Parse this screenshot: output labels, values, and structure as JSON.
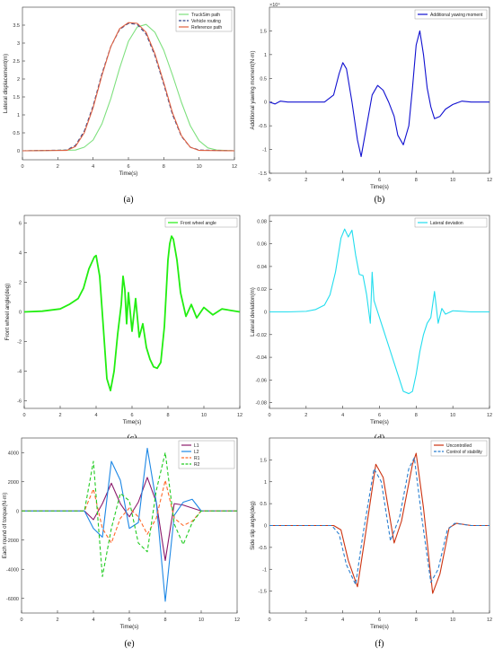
{
  "chart_data": [
    {
      "id": "a",
      "caption": "(a)",
      "type": "line",
      "xlabel": "Time(s)",
      "ylabel": "Lateral displacement(m)",
      "xlim": [
        0,
        12
      ],
      "ylim": [
        -0.25,
        4
      ],
      "xticks": [
        0,
        2,
        4,
        6,
        8,
        10,
        12
      ],
      "yticks": [
        0,
        0.5,
        1,
        1.5,
        2,
        2.5,
        3,
        3.5
      ],
      "legend_position": "top-right",
      "series": [
        {
          "name": "TruckSim path",
          "color": "#7de07d",
          "style": "solid",
          "x": [
            0,
            3,
            3.5,
            4,
            4.5,
            5,
            5.5,
            6,
            6.5,
            7,
            7.5,
            8,
            8.5,
            9,
            9.5,
            10,
            10.5,
            11,
            12
          ],
          "y": [
            0,
            0.02,
            0.1,
            0.3,
            0.75,
            1.45,
            2.3,
            3.05,
            3.45,
            3.52,
            3.3,
            2.8,
            2.1,
            1.35,
            0.7,
            0.28,
            0.08,
            0.02,
            0
          ]
        },
        {
          "name": "Vehicle routing",
          "color": "#33448a",
          "style": "dashed",
          "x": [
            0,
            2.5,
            3,
            3.5,
            4,
            4.5,
            5,
            5.5,
            6,
            6.5,
            7,
            7.5,
            8,
            8.5,
            9,
            9.5,
            10,
            12
          ],
          "y": [
            0,
            0.02,
            0.15,
            0.55,
            1.25,
            2.15,
            2.9,
            3.38,
            3.55,
            3.52,
            3.25,
            2.65,
            1.85,
            1.0,
            0.4,
            0.1,
            0.02,
            0
          ]
        },
        {
          "name": "Reference path",
          "color": "#e06040",
          "style": "solid",
          "x": [
            0,
            2.5,
            3,
            3.5,
            4,
            4.5,
            5,
            5.5,
            6,
            6.5,
            7,
            7.5,
            8,
            8.5,
            9,
            9.5,
            10,
            12
          ],
          "y": [
            0,
            0.01,
            0.12,
            0.5,
            1.2,
            2.1,
            2.9,
            3.4,
            3.57,
            3.55,
            3.3,
            2.7,
            1.9,
            1.05,
            0.42,
            0.1,
            0.01,
            0
          ]
        }
      ]
    },
    {
      "id": "b",
      "caption": "(b)",
      "type": "line",
      "xlabel": "Time(s)",
      "ylabel": "Additional yawing moment(N·m)",
      "exponent_label": "×10⁴",
      "xlim": [
        0,
        12
      ],
      "ylim": [
        -1.5,
        2.0
      ],
      "xticks": [
        0,
        2,
        4,
        6,
        8,
        10,
        12
      ],
      "yticks": [
        -1.5,
        -1,
        -0.5,
        0,
        0.5,
        1,
        1.5
      ],
      "legend_position": "top-right",
      "series": [
        {
          "name": "Additional yawing moment",
          "color": "#1010d0",
          "style": "solid",
          "x": [
            0,
            0.3,
            0.6,
            1,
            2,
            3,
            3.5,
            3.8,
            4.0,
            4.2,
            4.5,
            4.8,
            5.0,
            5.3,
            5.6,
            5.9,
            6.2,
            6.5,
            6.8,
            7.0,
            7.3,
            7.6,
            7.8,
            8.0,
            8.2,
            8.4,
            8.6,
            8.8,
            9.0,
            9.3,
            9.6,
            10,
            10.5,
            11,
            12
          ],
          "y": [
            0,
            -0.04,
            0.02,
            0,
            0,
            0,
            0.15,
            0.6,
            0.83,
            0.7,
            0.0,
            -0.8,
            -1.15,
            -0.5,
            0.15,
            0.35,
            0.25,
            0.0,
            -0.3,
            -0.7,
            -0.9,
            -0.5,
            0.3,
            1.2,
            1.5,
            1.0,
            0.3,
            -0.1,
            -0.35,
            -0.3,
            -0.15,
            -0.05,
            0.02,
            0,
            0
          ]
        }
      ]
    },
    {
      "id": "c",
      "caption": "(c)",
      "type": "line",
      "xlabel": "Time(s)",
      "ylabel": "Front wheel angle(deg)",
      "xlim": [
        0,
        12
      ],
      "ylim": [
        -6.5,
        6.5
      ],
      "xticks": [
        0,
        2,
        4,
        6,
        8,
        10,
        12
      ],
      "yticks": [
        -6,
        -4,
        -2,
        0,
        2,
        4,
        6
      ],
      "legend_position": "top-right",
      "series": [
        {
          "name": "Front wheel angle",
          "color": "#22ee11",
          "style": "solid",
          "x": [
            0,
            1.0,
            2.0,
            2.5,
            3.0,
            3.3,
            3.6,
            3.9,
            4.0,
            4.2,
            4.4,
            4.6,
            4.8,
            5.0,
            5.2,
            5.4,
            5.5,
            5.6,
            5.7,
            5.8,
            6.0,
            6.2,
            6.4,
            6.6,
            6.8,
            7.0,
            7.2,
            7.4,
            7.6,
            7.8,
            8.0,
            8.1,
            8.2,
            8.3,
            8.5,
            8.7,
            9.0,
            9.3,
            9.6,
            10,
            10.5,
            11,
            11.5,
            12
          ],
          "y": [
            0,
            0.05,
            0.2,
            0.5,
            0.9,
            1.6,
            2.9,
            3.7,
            3.8,
            2.4,
            -1.0,
            -4.5,
            -5.3,
            -4.0,
            -1.5,
            0.5,
            2.4,
            1.5,
            -0.8,
            1.3,
            -1.3,
            0.9,
            -1.7,
            -0.8,
            -2.4,
            -3.2,
            -3.7,
            -3.8,
            -3.4,
            -1.0,
            3.5,
            4.6,
            5.1,
            4.9,
            3.5,
            1.3,
            -0.3,
            0.5,
            -0.4,
            0.3,
            -0.2,
            0.2,
            0.1,
            0
          ]
        }
      ]
    },
    {
      "id": "d",
      "caption": "(d)",
      "type": "line",
      "xlabel": "Time(s)",
      "ylabel": "Lateral deviation(m)",
      "xlim": [
        0,
        12
      ],
      "ylim": [
        -0.085,
        0.085
      ],
      "xticks": [
        0,
        2,
        4,
        6,
        8,
        10,
        12
      ],
      "yticks": [
        -0.08,
        -0.06,
        -0.04,
        -0.02,
        0,
        0.02,
        0.04,
        0.06,
        0.08
      ],
      "legend_position": "top-right",
      "series": [
        {
          "name": "Lateral deviation",
          "color": "#22ddee",
          "style": "solid",
          "x": [
            0,
            1,
            2,
            2.5,
            3.0,
            3.3,
            3.6,
            3.9,
            4.1,
            4.3,
            4.5,
            4.7,
            4.9,
            5.1,
            5.3,
            5.5,
            5.6,
            5.7,
            5.8,
            6.0,
            6.2,
            6.4,
            6.6,
            6.8,
            7.0,
            7.3,
            7.6,
            7.8,
            8.0,
            8.2,
            8.4,
            8.6,
            8.8,
            9.0,
            9.2,
            9.4,
            9.6,
            10,
            11,
            12
          ],
          "y": [
            0,
            0,
            0.0005,
            0.002,
            0.006,
            0.015,
            0.035,
            0.065,
            0.073,
            0.066,
            0.072,
            0.05,
            0.033,
            0.032,
            0.015,
            -0.01,
            0.035,
            0.01,
            0.005,
            -0.005,
            -0.015,
            -0.025,
            -0.035,
            -0.045,
            -0.055,
            -0.07,
            -0.072,
            -0.07,
            -0.055,
            -0.035,
            -0.02,
            -0.01,
            -0.005,
            0.018,
            -0.01,
            0.003,
            -0.002,
            0.001,
            0,
            0
          ]
        }
      ]
    },
    {
      "id": "e",
      "caption": "(e)",
      "type": "line",
      "xlabel": "Time(s)",
      "ylabel": "Each round of torque(N·m)",
      "xlim": [
        0,
        12
      ],
      "ylim": [
        -7000,
        5000
      ],
      "xticks": [
        0,
        2,
        4,
        6,
        8,
        10,
        12
      ],
      "yticks": [
        -6000,
        -4000,
        -2000,
        0,
        2000,
        4000
      ],
      "legend_position": "top-right",
      "series": [
        {
          "name": "L1",
          "color": "#8b1a6b",
          "style": "solid",
          "x": [
            0,
            3.5,
            4.0,
            4.5,
            5.0,
            5.5,
            6.0,
            6.5,
            7.0,
            7.5,
            8.0,
            8.5,
            9.0,
            9.5,
            10,
            12
          ],
          "y": [
            0,
            0,
            -600,
            500,
            1900,
            500,
            -400,
            600,
            2300,
            600,
            -3400,
            500,
            400,
            200,
            0,
            0
          ]
        },
        {
          "name": "L2",
          "color": "#1e88e5",
          "style": "solid",
          "x": [
            0,
            3.5,
            4.0,
            4.5,
            5.0,
            5.5,
            6.0,
            6.5,
            7.0,
            7.5,
            8.0,
            8.5,
            9.0,
            9.5,
            10,
            12
          ],
          "y": [
            0,
            0,
            -1200,
            -1800,
            3400,
            2100,
            -1200,
            -800,
            4300,
            600,
            -6200,
            -300,
            600,
            800,
            0,
            0
          ]
        },
        {
          "name": "R1",
          "color": "#ff6a2a",
          "style": "dashed",
          "x": [
            0,
            3.5,
            4.0,
            4.5,
            5.0,
            5.5,
            6.0,
            6.5,
            7.0,
            7.5,
            8.0,
            8.5,
            9.0,
            9.5,
            10,
            12
          ],
          "y": [
            0,
            0,
            1500,
            -1200,
            -2200,
            -500,
            200,
            -400,
            -1600,
            -500,
            2100,
            -500,
            -1000,
            -700,
            0,
            0
          ]
        },
        {
          "name": "R2",
          "color": "#22cc22",
          "style": "dashed",
          "x": [
            0,
            3.5,
            4.0,
            4.5,
            5.0,
            5.5,
            6.0,
            6.5,
            7.0,
            7.5,
            8.0,
            8.5,
            9.0,
            9.5,
            10,
            12
          ],
          "y": [
            0,
            0,
            3400,
            -4500,
            -1200,
            1200,
            700,
            -2200,
            -2800,
            1400,
            4000,
            -900,
            -2300,
            -800,
            0,
            0
          ]
        }
      ]
    },
    {
      "id": "f",
      "caption": "(f)",
      "type": "line",
      "xlabel": "Time(s)",
      "ylabel": "Side slip angle(deg)",
      "xlim": [
        0,
        12
      ],
      "ylim": [
        -2.0,
        2.0
      ],
      "xticks": [
        0,
        2,
        4,
        6,
        8,
        10,
        12
      ],
      "yticks": [
        -1.5,
        -1,
        -0.5,
        0,
        0.5,
        1,
        1.5
      ],
      "legend_position": "top-right",
      "series": [
        {
          "name": "Uncontrolled",
          "color": "#cc3311",
          "style": "solid",
          "x": [
            0,
            3.5,
            3.9,
            4.3,
            4.8,
            5.2,
            5.8,
            6.2,
            6.8,
            7.2,
            7.8,
            8.0,
            8.4,
            8.9,
            9.3,
            9.8,
            10.2,
            11,
            12
          ],
          "y": [
            0,
            0,
            -0.1,
            -0.8,
            -1.4,
            -0.3,
            1.4,
            1.1,
            -0.4,
            0.1,
            1.4,
            1.65,
            0.4,
            -1.55,
            -1.1,
            -0.05,
            0.05,
            0,
            0
          ]
        },
        {
          "name": "Control of stability",
          "color": "#2a7fd0",
          "style": "dashed",
          "x": [
            0,
            3.4,
            3.8,
            4.2,
            4.7,
            5.1,
            5.7,
            6.1,
            6.6,
            7.1,
            7.6,
            7.9,
            8.3,
            8.8,
            9.2,
            9.7,
            10.1,
            11,
            12
          ],
          "y": [
            0,
            0,
            -0.2,
            -0.9,
            -1.35,
            -0.2,
            1.3,
            1.0,
            -0.35,
            0.2,
            1.3,
            1.55,
            0.2,
            -1.3,
            -1.0,
            -0.1,
            0.05,
            0,
            0
          ]
        }
      ]
    }
  ]
}
